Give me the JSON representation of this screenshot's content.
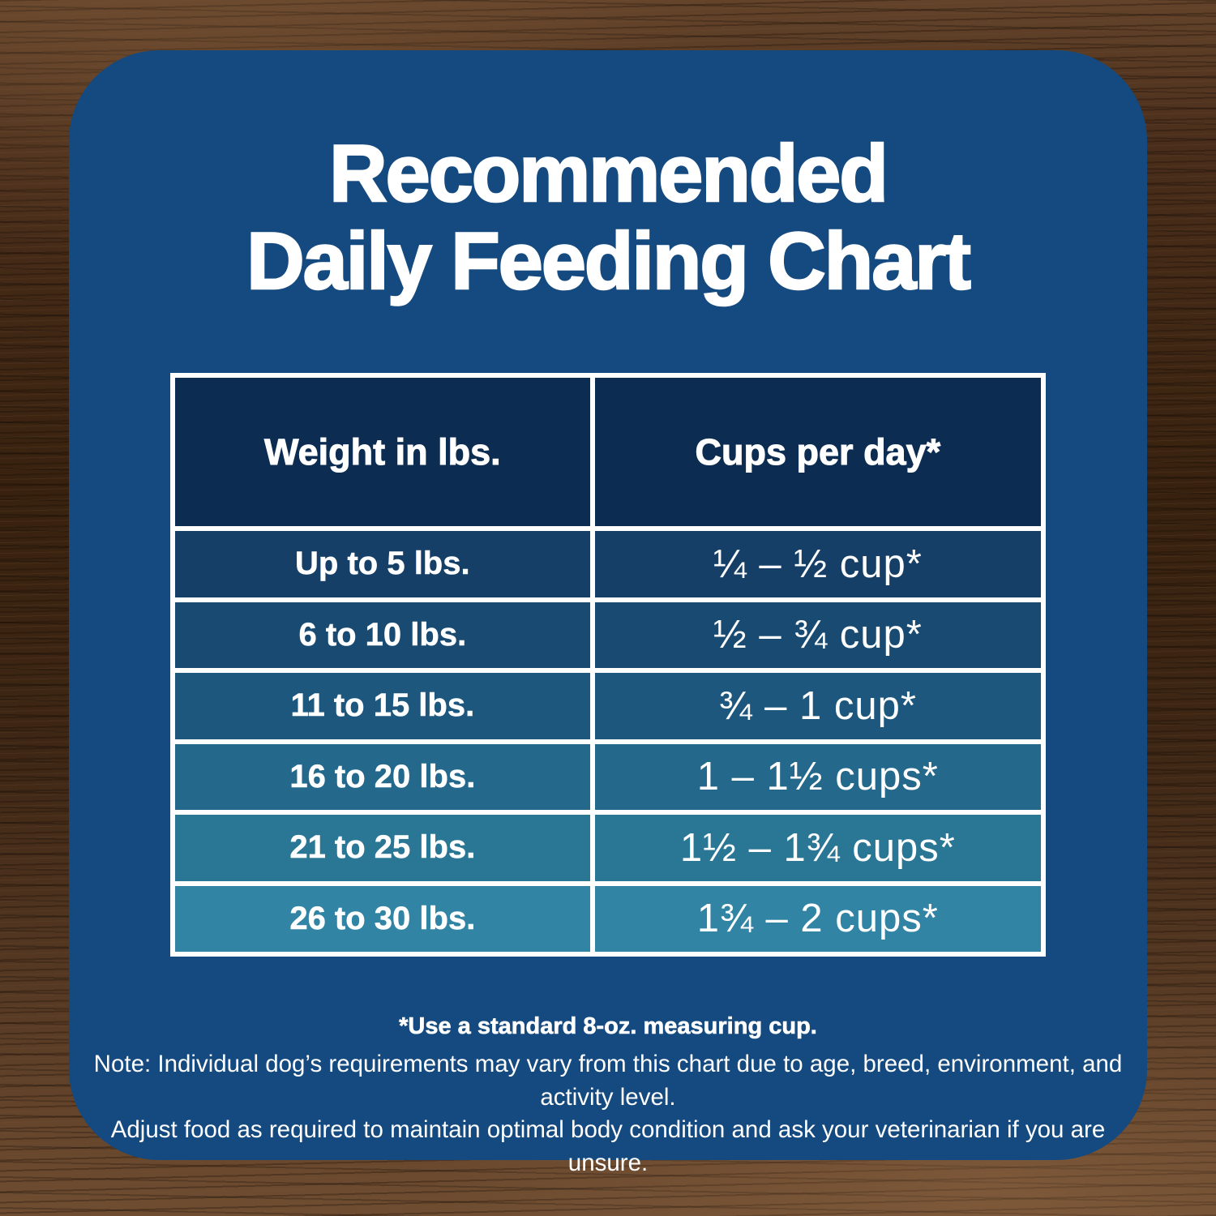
{
  "title": {
    "line1": "Recommended",
    "line2": "Daily Feeding Chart"
  },
  "footnotes": {
    "cup_note": "*Use a standard 8-oz. measuring cup.",
    "note_line1": "Note: Individual dog’s requirements may vary from this chart due to age, breed, environment, and activity level.",
    "note_line2": "Adjust food as required to maintain optimal body condition and ask your veterinarian if you are unsure."
  },
  "colors": {
    "panel": "#144a7f",
    "header_cell": "#0d2c52",
    "row_backgrounds": [
      "#163f68",
      "#194b72",
      "#1d577e",
      "#24688b",
      "#2a7695",
      "#3184a4"
    ],
    "border": "#ffffff",
    "text": "#ffffff",
    "wood_dark": "#38220f",
    "wood_light": "#6f4d31"
  },
  "chart_data": {
    "type": "table",
    "title": "Recommended Daily Feeding Chart",
    "columns": [
      "Weight in lbs.",
      "Cups per day*"
    ],
    "rows": [
      [
        "Up to 5 lbs.",
        "¼ – ½ cup*"
      ],
      [
        "6 to 10 lbs.",
        "½ – ¾ cup*"
      ],
      [
        "11 to 15 lbs.",
        "¾ – 1 cup*"
      ],
      [
        "16 to 20 lbs.",
        "1 – 1½ cups*"
      ],
      [
        "21 to 25 lbs.",
        "1½ – 1¾ cups*"
      ],
      [
        "26 to 30 lbs.",
        "1¾ – 2 cups*"
      ]
    ],
    "footnote": "*Use a standard 8-oz. measuring cup.",
    "notes": [
      "Note: Individual dog’s requirements may vary from this chart due to age, breed, environment, and activity level.",
      "Adjust food as required to maintain optimal body condition and ask your veterinarian if you are unsure."
    ],
    "layout_hints": {
      "header_background": "#0d2c52",
      "row_background_gradient": "dark navy to teal, top to bottom",
      "grid": "white 6px borders"
    }
  }
}
